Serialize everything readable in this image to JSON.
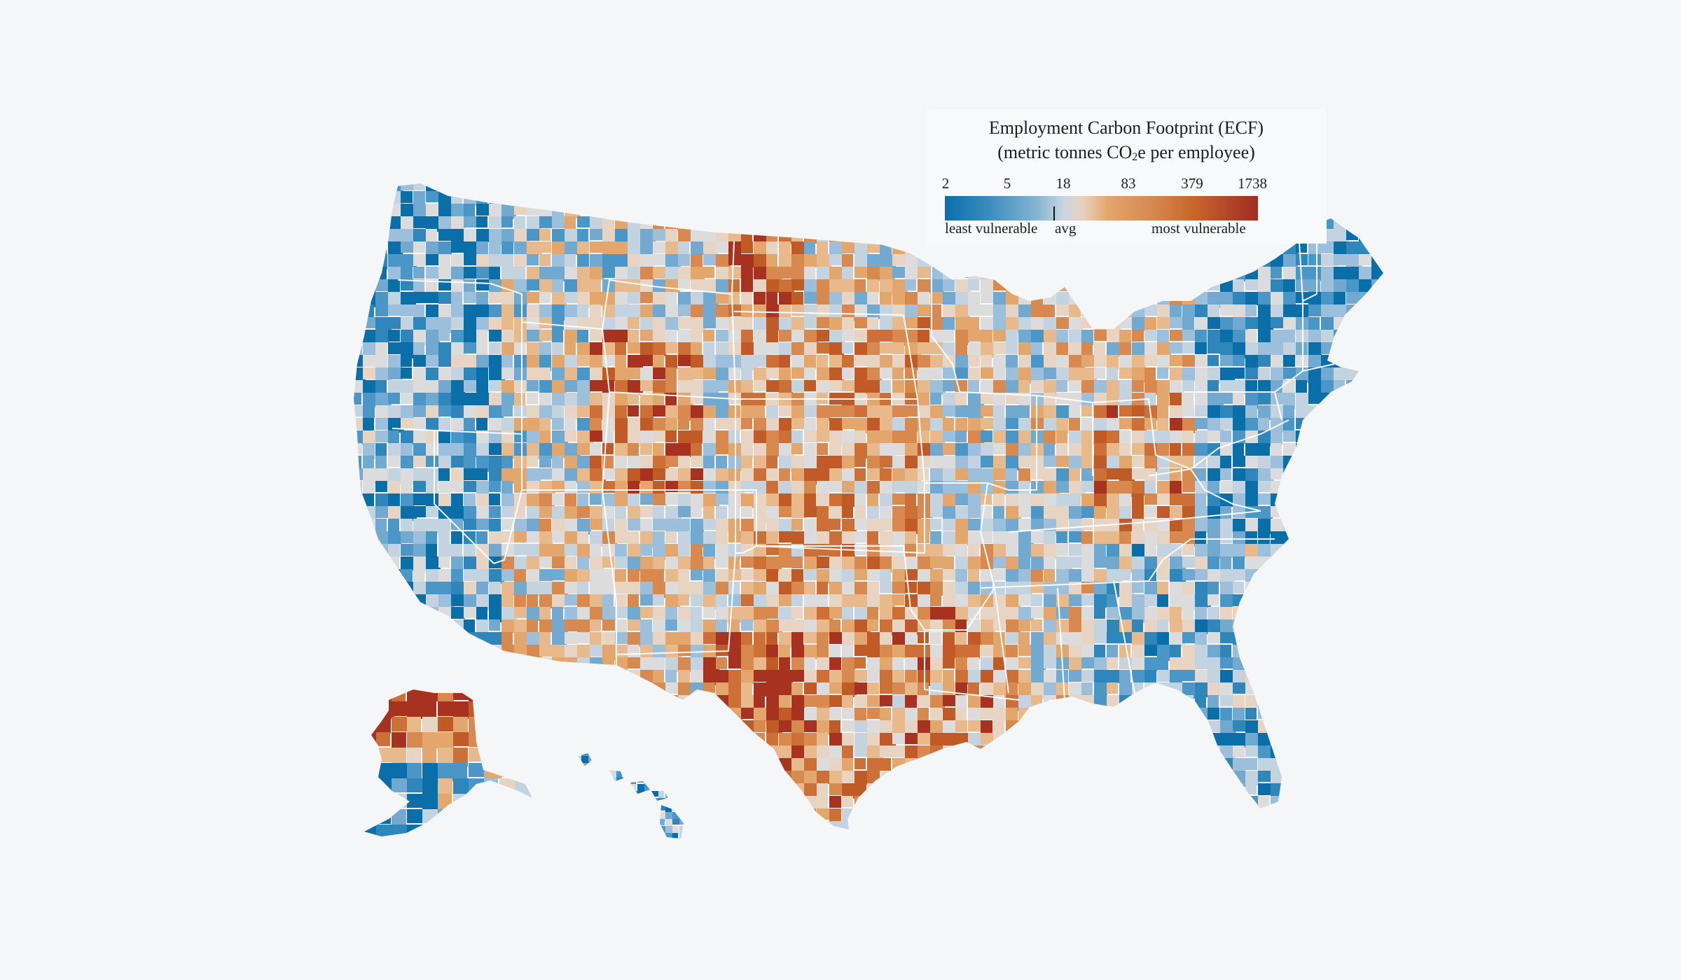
{
  "legend": {
    "title_line1": "Employment Carbon Footprint (ECF)",
    "title_line2_pre": "(metric tonnes CO",
    "title_line2_sub": "2",
    "title_line2_post": "e per employee)",
    "ticks": [
      "2",
      "5",
      "18",
      "83",
      "379",
      "1738"
    ],
    "left_label": "least vulnerable",
    "avg_label": "avg",
    "right_label": "most vulnerable",
    "colors": {
      "low": "#0a6fa9",
      "mid_low": "#8ab6d3",
      "avg": "#e7d2bf",
      "mid_high": "#d68a52",
      "high": "#a32d22"
    }
  },
  "chart_data": {
    "type": "heatmap",
    "subtype": "choropleth",
    "title": "Employment Carbon Footprint (ECF)",
    "subtitle": "(metric tonnes CO2e per employee)",
    "geography": "United States counties (incl. Alaska and Hawaii insets)",
    "scale": {
      "type": "log",
      "range": [
        2,
        1738
      ],
      "tick_labels": [
        2,
        5,
        18,
        83,
        379,
        1738
      ],
      "average_marker": 18,
      "low_label": "least vulnerable",
      "high_label": "most vulnerable",
      "colors": [
        "#0a6fa9",
        "#8ab6d3",
        "#e7d2bf",
        "#d68a52",
        "#a32d22"
      ]
    },
    "legend_position": "top-right",
    "regional_patterns": [
      {
        "region": "Pacific coast (WA, OR, CA)",
        "tendency": "low (blue)"
      },
      {
        "region": "Northeast / New England",
        "tendency": "low (blue)"
      },
      {
        "region": "Florida",
        "tendency": "low (blue)"
      },
      {
        "region": "Wyoming / Utah / Nevada interior",
        "tendency": "high (orange-red)"
      },
      {
        "region": "West Texas / Permian Basin",
        "tendency": "very high (dark red)"
      },
      {
        "region": "North Dakota (Bakken)",
        "tendency": "very high (dark red)"
      },
      {
        "region": "Great Plains",
        "tendency": "mixed, leaning orange"
      },
      {
        "region": "Gulf Coast (LA, TX coast)",
        "tendency": "high (orange)"
      },
      {
        "region": "Appalachia (WV, KY)",
        "tendency": "high (orange)"
      },
      {
        "region": "Northern Alaska (North Slope)",
        "tendency": "very high (dark red)"
      },
      {
        "region": "Southern Alaska / Hawaii",
        "tendency": "low (blue)"
      }
    ]
  }
}
